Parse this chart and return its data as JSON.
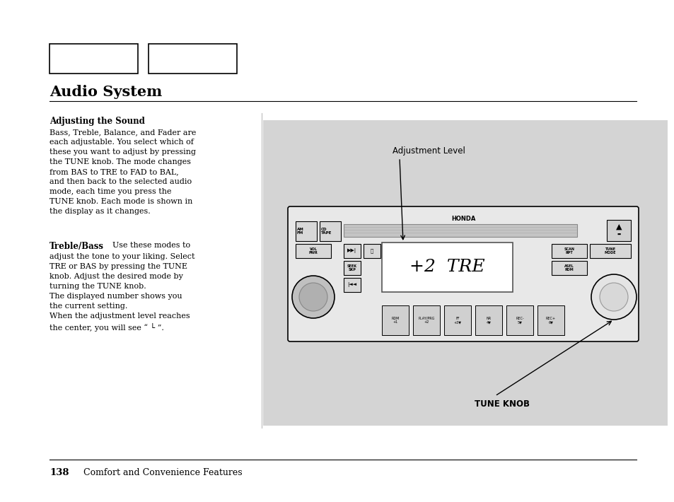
{
  "page_bg": "#ffffff",
  "diagram_bg": "#d4d4d4",
  "radio_bg": "#e8e8e8",
  "title": "Audio System",
  "section_header": "Adjusting the Sound",
  "body_text": "Bass, Treble, Balance, and Fader are\neach adjustable. You select which of\nthese you want to adjust by pressing\nthe TUNE knob. The mode changes\nfrom BAS to TRE to FAD to BAL,\nand then back to the selected audio\nmode, each time you press the\nTUNE knob. Each mode is shown in\nthe display as it changes.",
  "treble_bass_bold": "Treble/Bass",
  "treble_bass_inline": "    Use these modes to\nadjust the tone to your liking. Select\nTRE or BAS by pressing the TUNE\nknob. Adjust the desired mode by\nturning the TUNE knob.\nThe displayed number shows you\nthe current setting.\nWhen the adjustment level reaches\nthe center, you will see “ └ ”.",
  "diagram_label1": "Adjustment Level",
  "diagram_label2": "TUNE KNOB",
  "footer_page": "138",
  "footer_text": "Comfort and Convenience Features"
}
